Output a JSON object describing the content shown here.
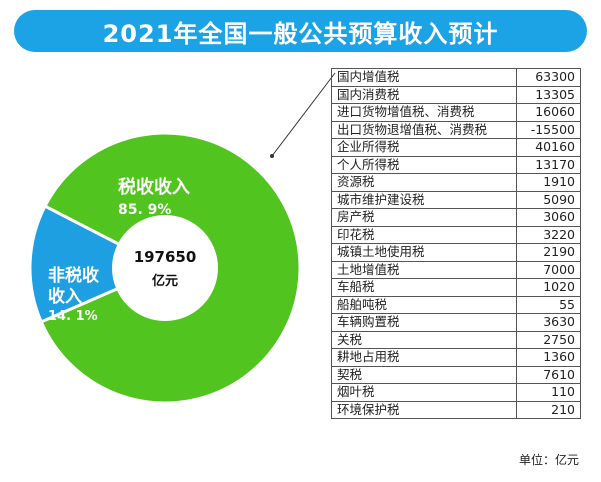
{
  "title": "2021年全国一般公共预算收入预计",
  "chart_data": {
    "type": "pie",
    "total": {
      "value": "197650",
      "unit": "亿元"
    },
    "slices": [
      {
        "name": "税收收入",
        "percent_label": "85. 9%",
        "value": 85.9,
        "color": "#52c41f"
      },
      {
        "name": "非税收收入",
        "name_lines": [
          "非税收",
          "收入"
        ],
        "percent_label": "14. 1%",
        "value": 14.1,
        "color": "#1d9fe2"
      }
    ]
  },
  "table": {
    "rows": [
      {
        "name": "国内增值税",
        "value": "63300"
      },
      {
        "name": "国内消费税",
        "value": "13305"
      },
      {
        "name": "进口货物增值税、消费税",
        "value": "16060"
      },
      {
        "name": "出口货物退增值税、消费税",
        "value": "-15500"
      },
      {
        "name": "企业所得税",
        "value": "40160"
      },
      {
        "name": "个人所得税",
        "value": "13170"
      },
      {
        "name": "资源税",
        "value": "1910"
      },
      {
        "name": "城市维护建设税",
        "value": "5090"
      },
      {
        "name": "房产税",
        "value": "3060"
      },
      {
        "name": "印花税",
        "value": "3220"
      },
      {
        "name": "城镇土地使用税",
        "value": "2190"
      },
      {
        "name": "土地增值税",
        "value": "7000"
      },
      {
        "name": "车船税",
        "value": "1020"
      },
      {
        "name": "船舶吨税",
        "value": "55"
      },
      {
        "name": "车辆购置税",
        "value": "3630"
      },
      {
        "name": "关税",
        "value": "2750"
      },
      {
        "name": "耕地占用税",
        "value": "1360"
      },
      {
        "name": "契税",
        "value": "7610"
      },
      {
        "name": "烟叶税",
        "value": "110"
      },
      {
        "name": "环境保护税",
        "value": "210"
      }
    ],
    "unit_note": "单位：亿元"
  }
}
